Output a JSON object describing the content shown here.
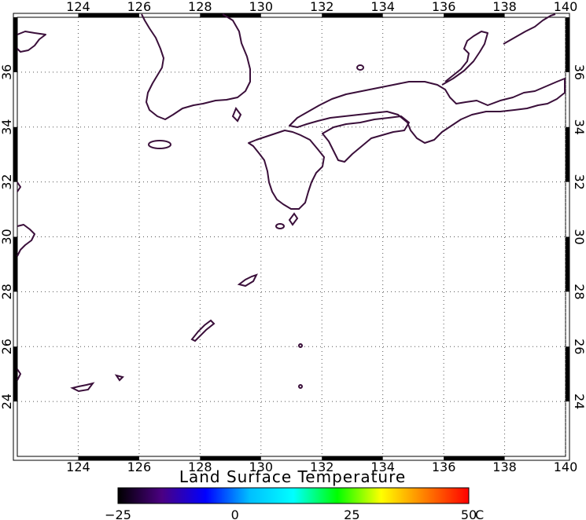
{
  "map": {
    "lon_ticks": [
      "124",
      "126",
      "128",
      "130",
      "132",
      "134",
      "136",
      "138",
      "140"
    ],
    "lat_ticks": [
      "24",
      "26",
      "28",
      "30",
      "32",
      "34",
      "36"
    ],
    "extent": {
      "lon": [
        122,
        140
      ],
      "lat": [
        22,
        38
      ]
    }
  },
  "colorbar": {
    "title": "Land Surface Temperature",
    "labels": [
      "−25",
      "0",
      "25",
      "50"
    ],
    "unit": "C",
    "range": [
      -25,
      50
    ],
    "colors": [
      "#000000",
      "#4b0082",
      "#0000ff",
      "#00bfff",
      "#00ffff",
      "#00ff00",
      "#ffff00",
      "#ff7f00",
      "#ff0000"
    ],
    "coast_color": "#3a0f3a"
  }
}
